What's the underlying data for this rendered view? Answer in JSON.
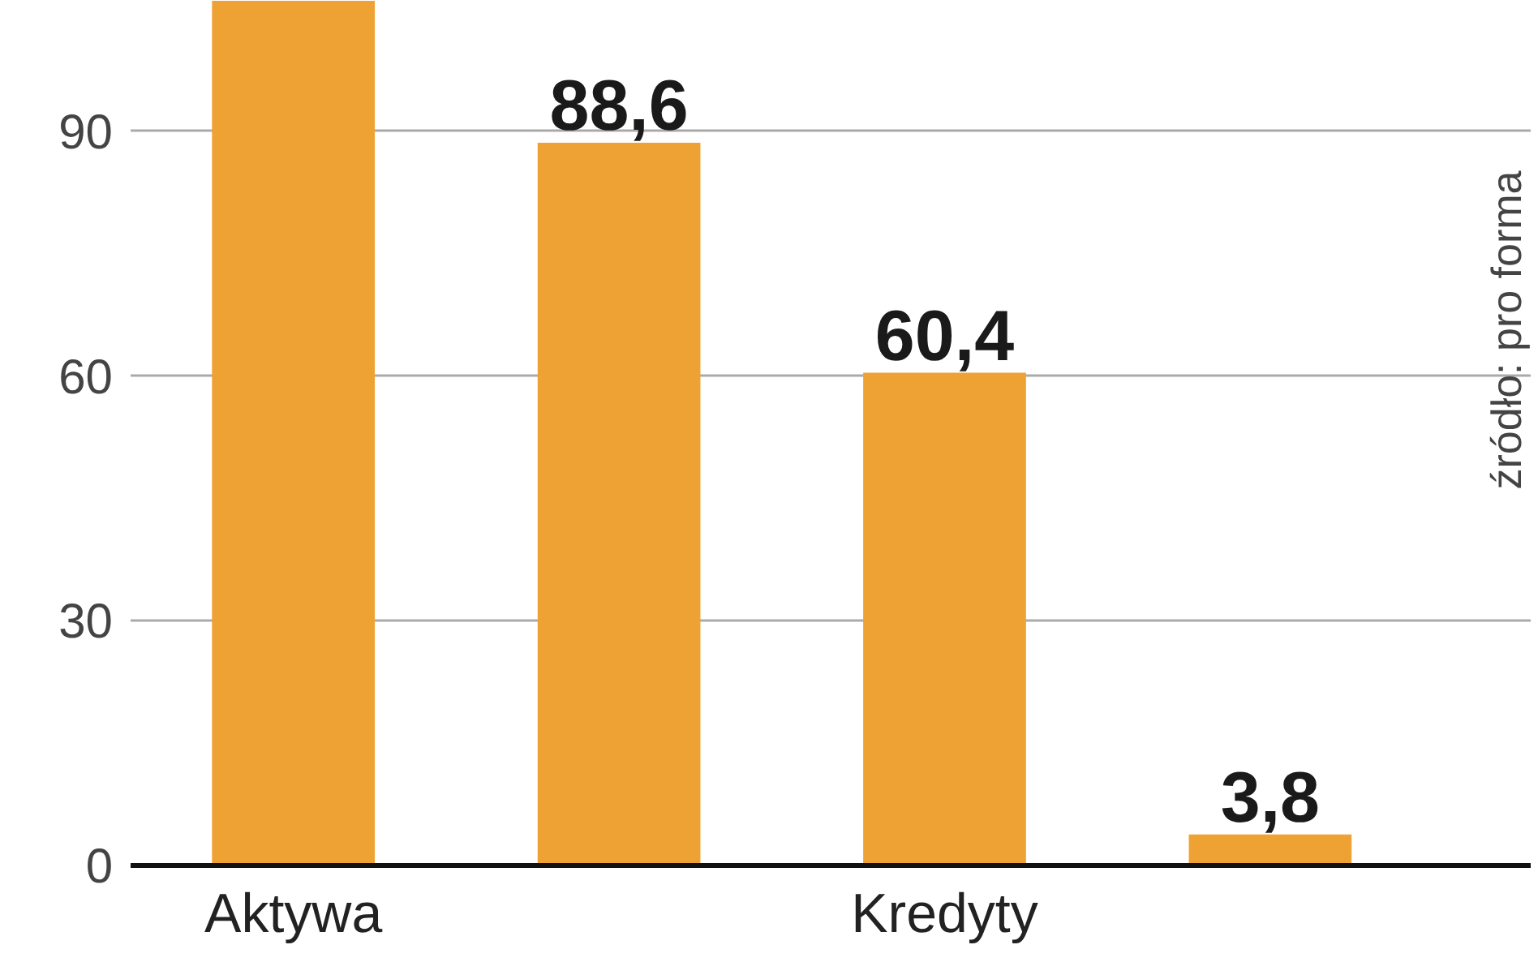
{
  "chart_data": {
    "type": "bar",
    "categories": [
      "Aktywa",
      null,
      "Kredyty",
      null
    ],
    "values": [
      106,
      88.6,
      60.4,
      3.8
    ],
    "color": "#eea233",
    "value_labels": [
      null,
      "88,6",
      "60,4",
      "3,8"
    ],
    "ylim": [
      0,
      106
    ],
    "yticks": [
      0,
      30,
      60,
      90
    ],
    "grid": "y",
    "annotations": [
      "źródło: pro forma"
    ]
  }
}
